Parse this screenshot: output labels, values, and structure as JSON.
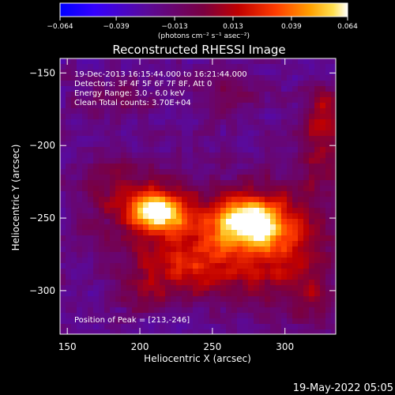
{
  "chart_data": {
    "type": "heatmap",
    "title": "Reconstructed RHESSI Image",
    "xlabel": "Heliocentric X (arcsec)",
    "ylabel": "Heliocentric Y (arcsec)",
    "xlim": [
      145,
      335
    ],
    "ylim": [
      -330,
      -140
    ],
    "x_ticks": [
      150,
      200,
      250,
      300
    ],
    "y_ticks": [
      -150,
      -200,
      -250,
      -300
    ],
    "annotations": [
      "19-Dec-2013 16:15:44.000 to 16:21:44.000",
      "Detectors: 3F 4F 5F 6F 7F 8F, Att 0",
      "Energy Range: 3.0 - 6.0 keV",
      "Clean     Total counts: 3.70E+04"
    ],
    "peak_label": "Position of Peak = [213,-246]",
    "colorbar": {
      "min": -0.064,
      "max": 0.064,
      "ticks": [
        "-0.064",
        "-0.039",
        "-0.013",
        "0.013",
        "0.039",
        "0.064"
      ],
      "units": "(photons cm⁻² s⁻¹ asec⁻²)",
      "colors": [
        "#0000ff",
        "#4b00ff",
        "#6a0aa0",
        "#7a0040",
        "#b00000",
        "#ff4000",
        "#ffa000",
        "#ffe040",
        "#ffffff"
      ]
    },
    "sources": [
      {
        "x": 213,
        "y": -246,
        "value": 0.064,
        "sx": 14,
        "sy": 9
      },
      {
        "x": 276,
        "y": -252,
        "value": 0.058,
        "sx": 15,
        "sy": 11
      },
      {
        "x": 247,
        "y": -262,
        "value": 0.028,
        "sx": 45,
        "sy": 22
      },
      {
        "x": 295,
        "y": -272,
        "value": 0.022,
        "sx": 25,
        "sy": 30
      },
      {
        "x": 230,
        "y": -288,
        "value": 0.018,
        "sx": 25,
        "sy": 14
      },
      {
        "x": 190,
        "y": -228,
        "value": 0.016,
        "sx": 20,
        "sy": 16
      },
      {
        "x": 325,
        "y": -200,
        "value": 0.018,
        "sx": 12,
        "sy": 22
      },
      {
        "x": 328,
        "y": -175,
        "value": 0.015,
        "sx": 10,
        "sy": 12
      },
      {
        "x": 180,
        "y": -168,
        "value": 0.009,
        "sx": 22,
        "sy": 10
      },
      {
        "x": 320,
        "y": -305,
        "value": 0.013,
        "sx": 10,
        "sy": 12
      },
      {
        "x": 263,
        "y": -165,
        "value": 0.012,
        "sx": 14,
        "sy": 10
      },
      {
        "x": 200,
        "y": -305,
        "value": 0.009,
        "sx": 12,
        "sy": 8
      }
    ],
    "background": -0.022
  },
  "footer": {
    "date": "19-May-2022 05:05"
  }
}
